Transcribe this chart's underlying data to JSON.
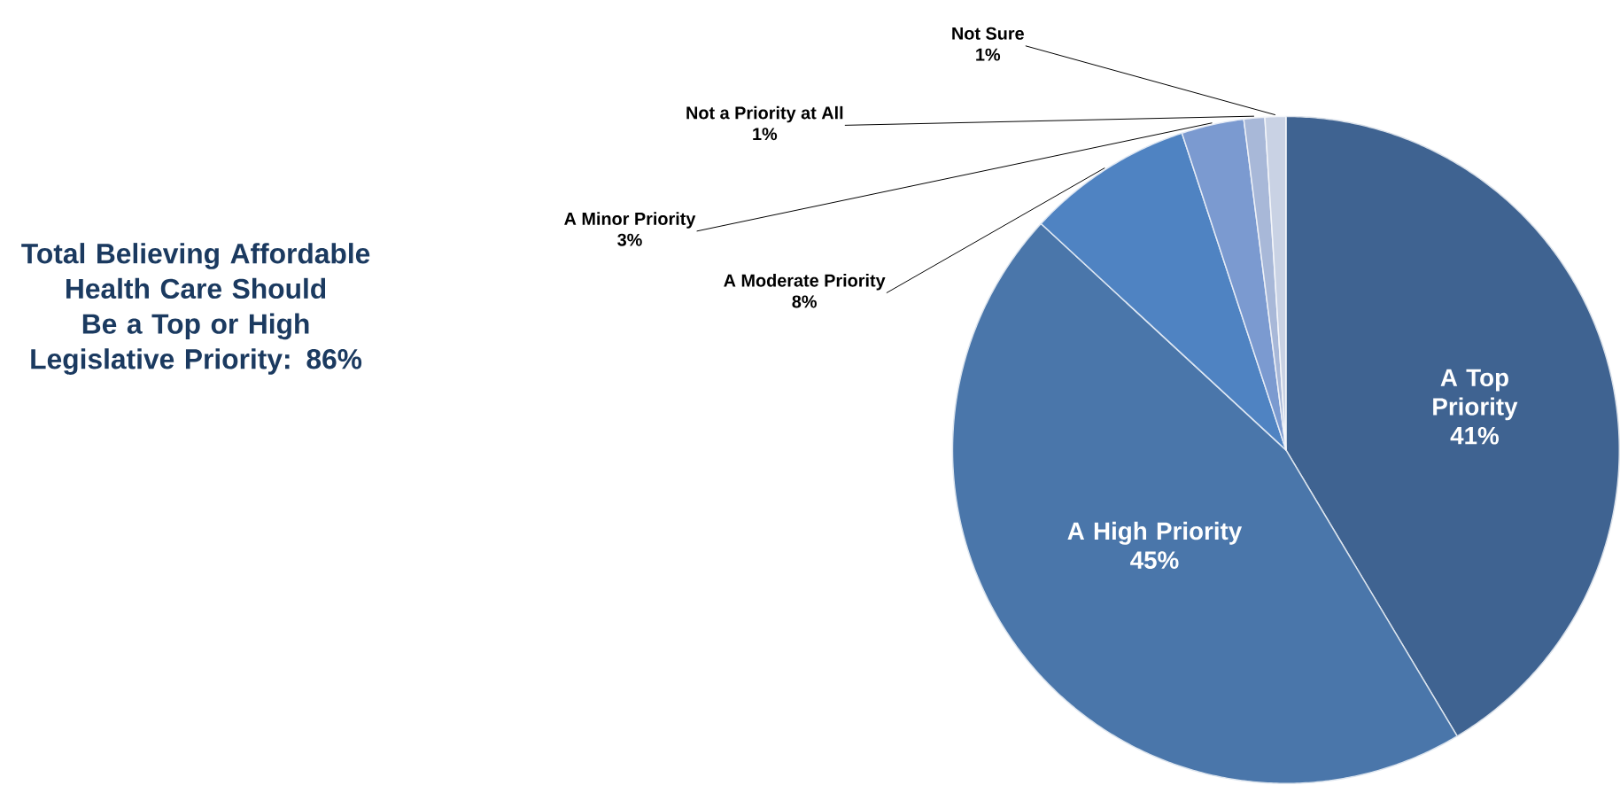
{
  "chart_data": {
    "type": "pie",
    "categories": [
      "A Top Priority",
      "A High Priority",
      "A Moderate Priority",
      "A Minor Priority",
      "Not a Priority at All",
      "Not Sure"
    ],
    "values": [
      41,
      45,
      8,
      3,
      1,
      1
    ],
    "value_labels": [
      "41%",
      "45%",
      "8%",
      "3%",
      "1%",
      "1%"
    ],
    "colors": [
      "#3f6391",
      "#4a76aa",
      "#4f83c2",
      "#7b9ad0",
      "#a8b8d8",
      "#c9d2e4"
    ],
    "annotations": [
      "Total Believing Affordable Health Care Should Be a Top or High Legislative Priority: 86%"
    ]
  }
}
